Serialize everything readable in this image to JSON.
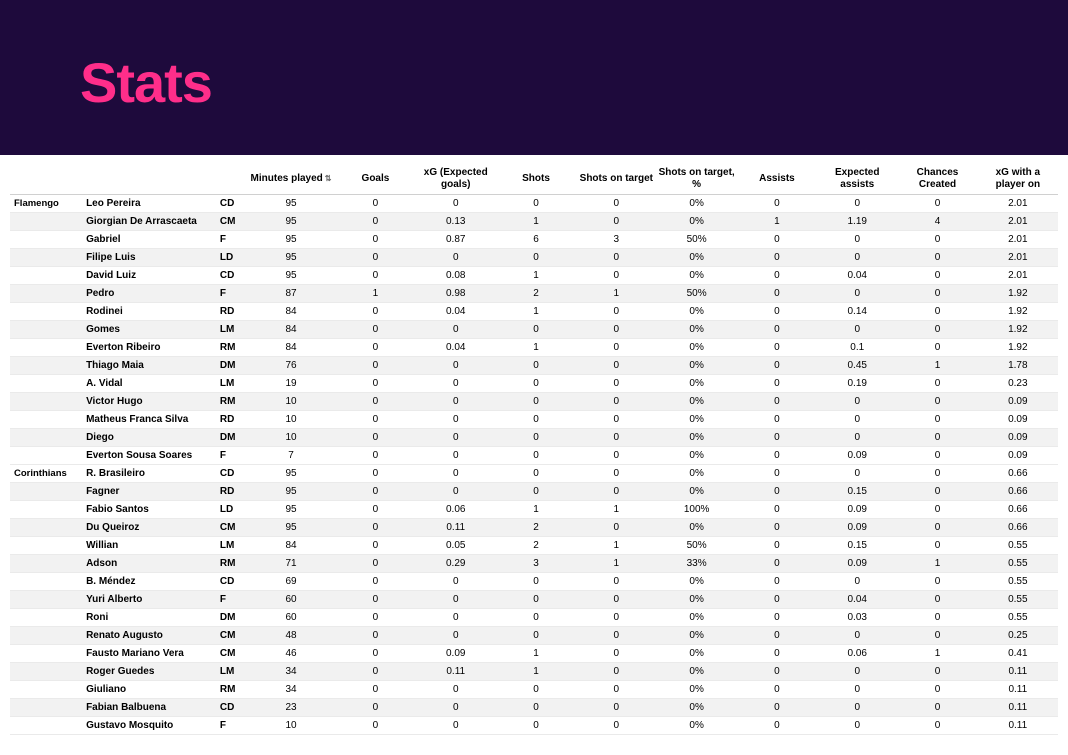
{
  "header": {
    "title": "Stats"
  },
  "colors": {
    "header_bg": "#1e0a3c",
    "title_color": "#ff2e8a",
    "zebra": "#f2f2f2",
    "text": "#000000",
    "border": "#eaeaea"
  },
  "table": {
    "columns": [
      {
        "key": "team",
        "label": ""
      },
      {
        "key": "player",
        "label": ""
      },
      {
        "key": "pos",
        "label": ""
      },
      {
        "key": "minutes",
        "label": "Minutes played",
        "sorted": true
      },
      {
        "key": "goals",
        "label": "Goals"
      },
      {
        "key": "xg",
        "label": "xG (Expected goals)"
      },
      {
        "key": "shots",
        "label": "Shots"
      },
      {
        "key": "sot",
        "label": "Shots on target"
      },
      {
        "key": "sot_pct",
        "label": "Shots on target, %"
      },
      {
        "key": "assists",
        "label": "Assists"
      },
      {
        "key": "xa",
        "label": "Expected assists"
      },
      {
        "key": "cc",
        "label": "Chances Created"
      },
      {
        "key": "xg_on",
        "label": "xG with a player on"
      }
    ],
    "groups": [
      {
        "team": "Flamengo",
        "rows": [
          {
            "player": "Leo Pereira",
            "pos": "CD",
            "minutes": "95",
            "goals": "0",
            "xg": "0",
            "shots": "0",
            "sot": "0",
            "sot_pct": "0%",
            "assists": "0",
            "xa": "0",
            "cc": "0",
            "xg_on": "2.01"
          },
          {
            "player": "Giorgian De Arrascaeta",
            "pos": "CM",
            "minutes": "95",
            "goals": "0",
            "xg": "0.13",
            "shots": "1",
            "sot": "0",
            "sot_pct": "0%",
            "assists": "1",
            "xa": "1.19",
            "cc": "4",
            "xg_on": "2.01"
          },
          {
            "player": "Gabriel",
            "pos": "F",
            "minutes": "95",
            "goals": "0",
            "xg": "0.87",
            "shots": "6",
            "sot": "3",
            "sot_pct": "50%",
            "assists": "0",
            "xa": "0",
            "cc": "0",
            "xg_on": "2.01"
          },
          {
            "player": "Filipe Luis",
            "pos": "LD",
            "minutes": "95",
            "goals": "0",
            "xg": "0",
            "shots": "0",
            "sot": "0",
            "sot_pct": "0%",
            "assists": "0",
            "xa": "0",
            "cc": "0",
            "xg_on": "2.01"
          },
          {
            "player": "David Luiz",
            "pos": "CD",
            "minutes": "95",
            "goals": "0",
            "xg": "0.08",
            "shots": "1",
            "sot": "0",
            "sot_pct": "0%",
            "assists": "0",
            "xa": "0.04",
            "cc": "0",
            "xg_on": "2.01"
          },
          {
            "player": "Pedro",
            "pos": "F",
            "minutes": "87",
            "goals": "1",
            "xg": "0.98",
            "shots": "2",
            "sot": "1",
            "sot_pct": "50%",
            "assists": "0",
            "xa": "0",
            "cc": "0",
            "xg_on": "1.92"
          },
          {
            "player": "Rodinei",
            "pos": "RD",
            "minutes": "84",
            "goals": "0",
            "xg": "0.04",
            "shots": "1",
            "sot": "0",
            "sot_pct": "0%",
            "assists": "0",
            "xa": "0.14",
            "cc": "0",
            "xg_on": "1.92"
          },
          {
            "player": "Gomes",
            "pos": "LM",
            "minutes": "84",
            "goals": "0",
            "xg": "0",
            "shots": "0",
            "sot": "0",
            "sot_pct": "0%",
            "assists": "0",
            "xa": "0",
            "cc": "0",
            "xg_on": "1.92"
          },
          {
            "player": "Everton Ribeiro",
            "pos": "RM",
            "minutes": "84",
            "goals": "0",
            "xg": "0.04",
            "shots": "1",
            "sot": "0",
            "sot_pct": "0%",
            "assists": "0",
            "xa": "0.1",
            "cc": "0",
            "xg_on": "1.92"
          },
          {
            "player": "Thiago Maia",
            "pos": "DM",
            "minutes": "76",
            "goals": "0",
            "xg": "0",
            "shots": "0",
            "sot": "0",
            "sot_pct": "0%",
            "assists": "0",
            "xa": "0.45",
            "cc": "1",
            "xg_on": "1.78"
          },
          {
            "player": "A. Vidal",
            "pos": "LM",
            "minutes": "19",
            "goals": "0",
            "xg": "0",
            "shots": "0",
            "sot": "0",
            "sot_pct": "0%",
            "assists": "0",
            "xa": "0.19",
            "cc": "0",
            "xg_on": "0.23"
          },
          {
            "player": "Victor Hugo",
            "pos": "RM",
            "minutes": "10",
            "goals": "0",
            "xg": "0",
            "shots": "0",
            "sot": "0",
            "sot_pct": "0%",
            "assists": "0",
            "xa": "0",
            "cc": "0",
            "xg_on": "0.09"
          },
          {
            "player": "Matheus Franca Silva",
            "pos": "RD",
            "minutes": "10",
            "goals": "0",
            "xg": "0",
            "shots": "0",
            "sot": "0",
            "sot_pct": "0%",
            "assists": "0",
            "xa": "0",
            "cc": "0",
            "xg_on": "0.09"
          },
          {
            "player": "Diego",
            "pos": "DM",
            "minutes": "10",
            "goals": "0",
            "xg": "0",
            "shots": "0",
            "sot": "0",
            "sot_pct": "0%",
            "assists": "0",
            "xa": "0",
            "cc": "0",
            "xg_on": "0.09"
          },
          {
            "player": "Everton Sousa Soares",
            "pos": "F",
            "minutes": "7",
            "goals": "0",
            "xg": "0",
            "shots": "0",
            "sot": "0",
            "sot_pct": "0%",
            "assists": "0",
            "xa": "0.09",
            "cc": "0",
            "xg_on": "0.09"
          }
        ]
      },
      {
        "team": "Corinthians",
        "rows": [
          {
            "player": "R. Brasileiro",
            "pos": "CD",
            "minutes": "95",
            "goals": "0",
            "xg": "0",
            "shots": "0",
            "sot": "0",
            "sot_pct": "0%",
            "assists": "0",
            "xa": "0",
            "cc": "0",
            "xg_on": "0.66"
          },
          {
            "player": "Fagner",
            "pos": "RD",
            "minutes": "95",
            "goals": "0",
            "xg": "0",
            "shots": "0",
            "sot": "0",
            "sot_pct": "0%",
            "assists": "0",
            "xa": "0.15",
            "cc": "0",
            "xg_on": "0.66"
          },
          {
            "player": "Fabio Santos",
            "pos": "LD",
            "minutes": "95",
            "goals": "0",
            "xg": "0.06",
            "shots": "1",
            "sot": "1",
            "sot_pct": "100%",
            "assists": "0",
            "xa": "0.09",
            "cc": "0",
            "xg_on": "0.66"
          },
          {
            "player": "Du Queiroz",
            "pos": "CM",
            "minutes": "95",
            "goals": "0",
            "xg": "0.11",
            "shots": "2",
            "sot": "0",
            "sot_pct": "0%",
            "assists": "0",
            "xa": "0.09",
            "cc": "0",
            "xg_on": "0.66"
          },
          {
            "player": "Willian",
            "pos": "LM",
            "minutes": "84",
            "goals": "0",
            "xg": "0.05",
            "shots": "2",
            "sot": "1",
            "sot_pct": "50%",
            "assists": "0",
            "xa": "0.15",
            "cc": "0",
            "xg_on": "0.55"
          },
          {
            "player": "Adson",
            "pos": "RM",
            "minutes": "71",
            "goals": "0",
            "xg": "0.29",
            "shots": "3",
            "sot": "1",
            "sot_pct": "33%",
            "assists": "0",
            "xa": "0.09",
            "cc": "1",
            "xg_on": "0.55"
          },
          {
            "player": "B. Méndez",
            "pos": "CD",
            "minutes": "69",
            "goals": "0",
            "xg": "0",
            "shots": "0",
            "sot": "0",
            "sot_pct": "0%",
            "assists": "0",
            "xa": "0",
            "cc": "0",
            "xg_on": "0.55"
          },
          {
            "player": "Yuri Alberto",
            "pos": "F",
            "minutes": "60",
            "goals": "0",
            "xg": "0",
            "shots": "0",
            "sot": "0",
            "sot_pct": "0%",
            "assists": "0",
            "xa": "0.04",
            "cc": "0",
            "xg_on": "0.55"
          },
          {
            "player": "Roni",
            "pos": "DM",
            "minutes": "60",
            "goals": "0",
            "xg": "0",
            "shots": "0",
            "sot": "0",
            "sot_pct": "0%",
            "assists": "0",
            "xa": "0.03",
            "cc": "0",
            "xg_on": "0.55"
          },
          {
            "player": "Renato Augusto",
            "pos": "CM",
            "minutes": "48",
            "goals": "0",
            "xg": "0",
            "shots": "0",
            "sot": "0",
            "sot_pct": "0%",
            "assists": "0",
            "xa": "0",
            "cc": "0",
            "xg_on": "0.25"
          },
          {
            "player": "Fausto Mariano Vera",
            "pos": "CM",
            "minutes": "46",
            "goals": "0",
            "xg": "0.09",
            "shots": "1",
            "sot": "0",
            "sot_pct": "0%",
            "assists": "0",
            "xa": "0.06",
            "cc": "1",
            "xg_on": "0.41"
          },
          {
            "player": "Roger Guedes",
            "pos": "LM",
            "minutes": "34",
            "goals": "0",
            "xg": "0.11",
            "shots": "1",
            "sot": "0",
            "sot_pct": "0%",
            "assists": "0",
            "xa": "0",
            "cc": "0",
            "xg_on": "0.11"
          },
          {
            "player": "Giuliano",
            "pos": "RM",
            "minutes": "34",
            "goals": "0",
            "xg": "0",
            "shots": "0",
            "sot": "0",
            "sot_pct": "0%",
            "assists": "0",
            "xa": "0",
            "cc": "0",
            "xg_on": "0.11"
          },
          {
            "player": "Fabian Balbuena",
            "pos": "CD",
            "minutes": "23",
            "goals": "0",
            "xg": "0",
            "shots": "0",
            "sot": "0",
            "sot_pct": "0%",
            "assists": "0",
            "xa": "0",
            "cc": "0",
            "xg_on": "0.11"
          },
          {
            "player": "Gustavo Mosquito",
            "pos": "F",
            "minutes": "10",
            "goals": "0",
            "xg": "0",
            "shots": "0",
            "sot": "0",
            "sot_pct": "0%",
            "assists": "0",
            "xa": "0",
            "cc": "0",
            "xg_on": "0.11"
          }
        ]
      }
    ]
  }
}
